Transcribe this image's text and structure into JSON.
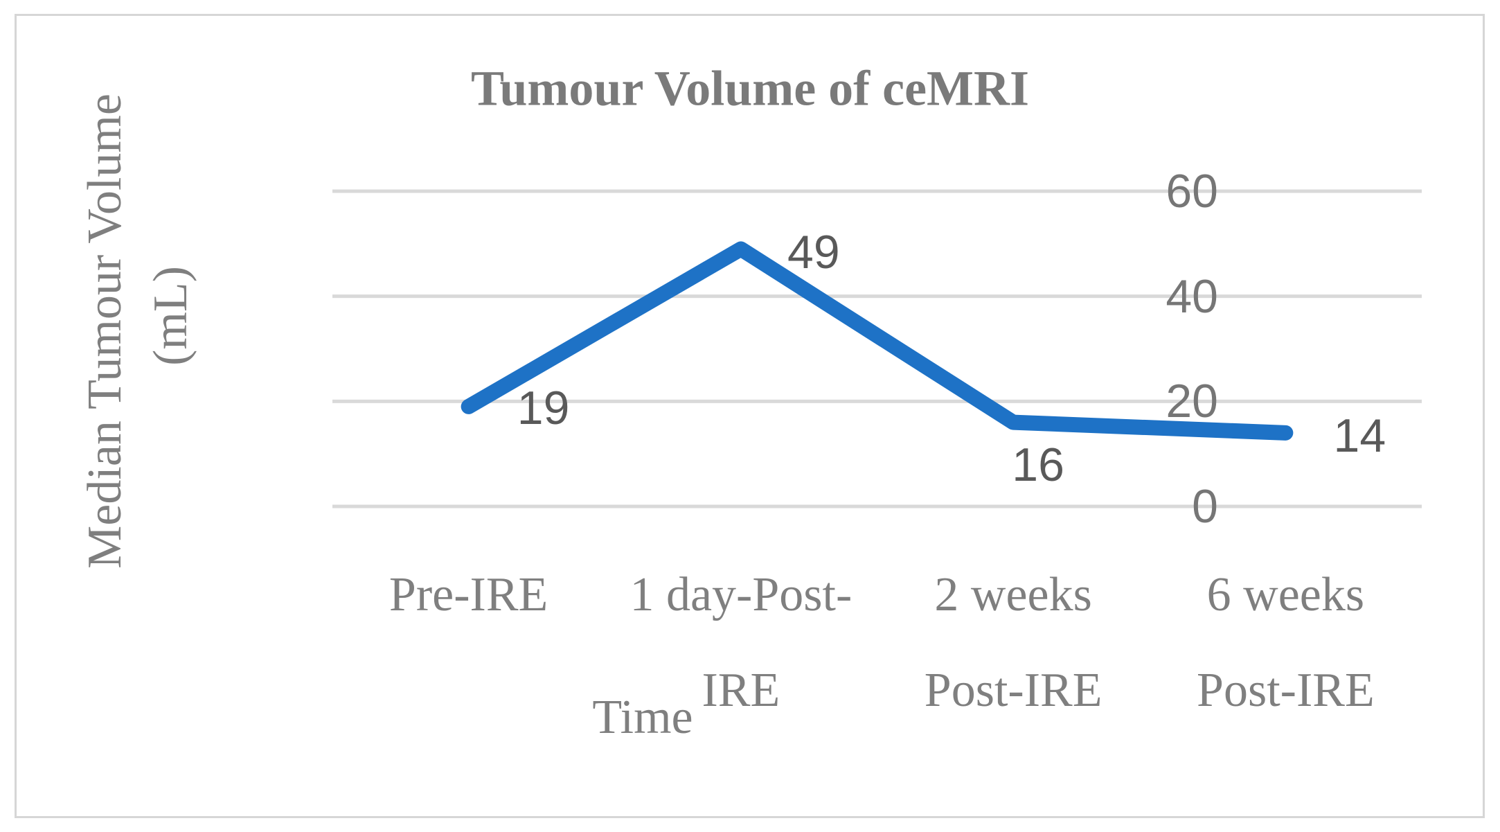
{
  "figure": {
    "background": "#ffffff",
    "border_color": "#d6d6d6"
  },
  "chart_data": {
    "type": "line",
    "title": "Tumour Volume of ceMRI",
    "xlabel": "Time",
    "ylabel": "Median Tumour Volume (mL)",
    "ylabel_lines": [
      "Median Tumour Volume",
      "(mL)"
    ],
    "categories": [
      "Pre-IRE",
      "1 day-Post-IRE",
      "2 weeks Post-IRE",
      "6 weeks Post-IRE"
    ],
    "category_display_lines": [
      [
        "Pre-IRE"
      ],
      [
        "1 day-Post-",
        "IRE"
      ],
      [
        "2 weeks",
        "Post-IRE"
      ],
      [
        "6 weeks",
        "Post-IRE"
      ]
    ],
    "values": [
      19,
      49,
      16,
      14
    ],
    "data_labels": [
      "19",
      "49",
      "16",
      "14"
    ],
    "yticks": [
      0,
      20,
      40,
      60
    ],
    "ylim": [
      0,
      60
    ],
    "grid": "horizontal",
    "legend": "none",
    "line_color": "#1e72c6",
    "gridline_color": "#d9d9d9",
    "text_color": "#7f7f7f",
    "data_label_color": "#595959"
  }
}
